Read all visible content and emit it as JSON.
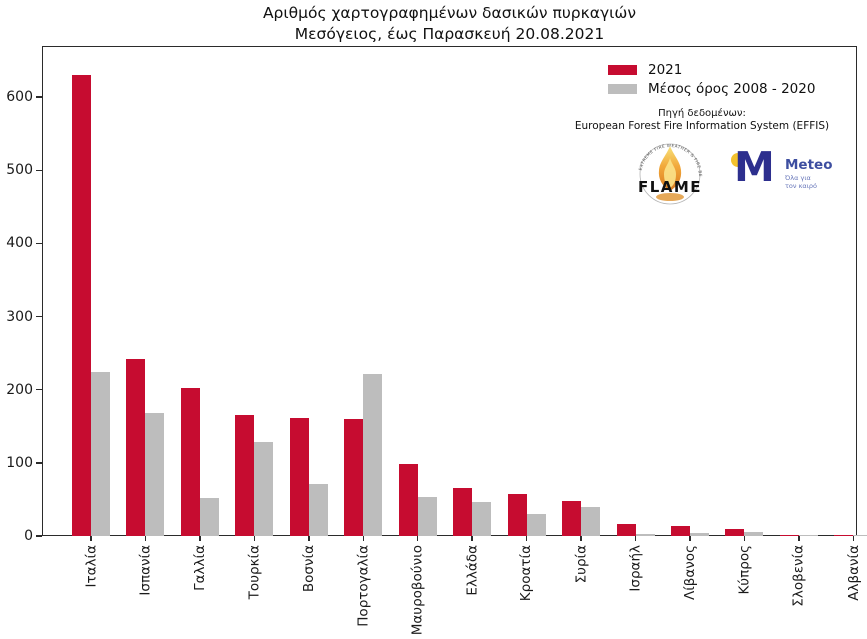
{
  "title": {
    "line1": "Αριθμός χαρτογραφημένων δασικών πυρκαγιών",
    "line2": "Μεσόγειος, έως Παρασκευή 20.08.2021"
  },
  "legend": {
    "items": [
      {
        "label": "2021",
        "color": "#C60C30"
      },
      {
        "label": "Μέσος όρος 2008 - 2020",
        "color": "#BDBDBD"
      }
    ]
  },
  "source": {
    "line1": "Πηγή δεδομένων:",
    "line2": "European Forest Fire Information System (EFFIS)"
  },
  "logos": {
    "flame": {
      "name": "FLAME",
      "arc_text": "EXTREME FIRE WEATHER & FIRE BEHAVIOUR"
    },
    "meteo": {
      "name": "Meteo",
      "tagline_line1": "Όλα για",
      "tagline_line2": "τον καιρό"
    }
  },
  "chart_data": {
    "type": "bar",
    "title": "Αριθμός χαρτογραφημένων δασικών πυρκαγιών — Μεσόγειος, έως Παρασκευή 20.08.2021",
    "categories": [
      "Ιταλία",
      "Ισπανία",
      "Γαλλία",
      "Τουρκία",
      "Βοσνία",
      "Πορτογαλία",
      "Μαυροβούνιο",
      "Ελλάδα",
      "Κροατία",
      "Συρία",
      "Ισραήλ",
      "Λίβανος",
      "Κύπρος",
      "Σλοβενία",
      "Αλβανία"
    ],
    "series": [
      {
        "name": "2021",
        "color": "#C60C30",
        "values": [
          630,
          242,
          202,
          165,
          161,
          160,
          99,
          66,
          58,
          48,
          17,
          13,
          10,
          2,
          1
        ]
      },
      {
        "name": "Μέσος όρος 2008 - 2020",
        "color": "#BDBDBD",
        "values": [
          224,
          168,
          52,
          128,
          71,
          221,
          54,
          46,
          30,
          39,
          3,
          4,
          5,
          1,
          1
        ]
      }
    ],
    "xlabel": "",
    "ylabel": "",
    "yticks": [
      0,
      100,
      200,
      300,
      400,
      500,
      600
    ],
    "ylim": [
      0,
      670
    ],
    "grid": false,
    "legend_position": "upper-right-inside",
    "bar_orientation": "vertical",
    "x_tick_label_rotation": 90
  }
}
